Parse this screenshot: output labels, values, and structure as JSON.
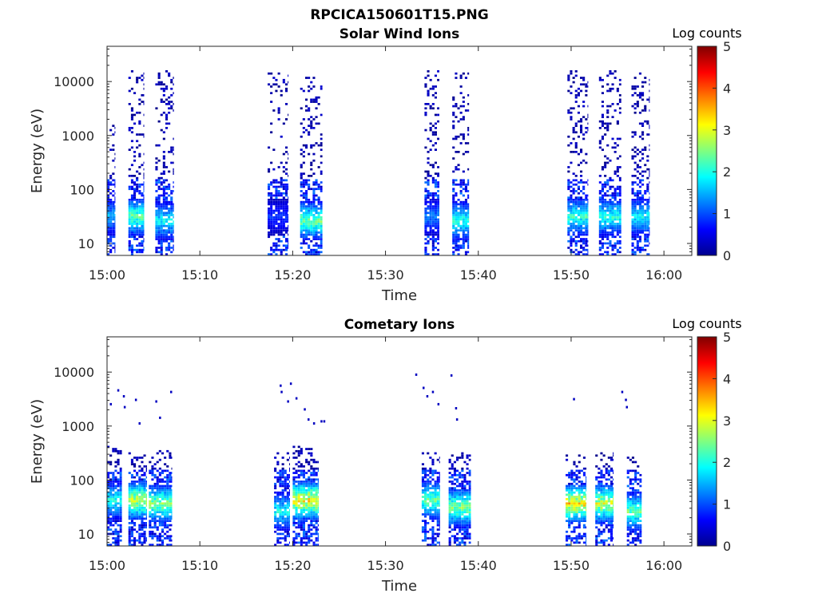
{
  "figure_title": "RPCICA150601T15.PNG",
  "chart_data": [
    {
      "type": "heatmap",
      "title": "Solar Wind Ions",
      "xlabel": "Time",
      "ylabel": "Energy (eV)",
      "yscale": "log",
      "xlim_minutes": [
        0,
        63
      ],
      "ylim": [
        6,
        45000
      ],
      "x_ticks": [
        {
          "value": 0,
          "label": "15:00"
        },
        {
          "value": 10,
          "label": "15:10"
        },
        {
          "value": 20,
          "label": "15:20"
        },
        {
          "value": 30,
          "label": "15:30"
        },
        {
          "value": 40,
          "label": "15:40"
        },
        {
          "value": 50,
          "label": "15:50"
        },
        {
          "value": 60,
          "label": "16:00"
        }
      ],
      "y_ticks": [
        {
          "value": 10,
          "label": "10"
        },
        {
          "value": 100,
          "label": "100"
        },
        {
          "value": 1000,
          "label": "1000"
        },
        {
          "value": 10000,
          "label": "10000"
        }
      ],
      "colorbar": {
        "title": "Log counts",
        "min": 0,
        "max": 5,
        "ticks": [
          "0",
          "1",
          "2",
          "3",
          "4",
          "5"
        ],
        "colormap": "jet"
      },
      "grid": false,
      "bursts": [
        {
          "t0": 0.0,
          "t1": 0.9,
          "peak_energy": 30,
          "peak_log": 1.8,
          "emax": 1500,
          "density": 0.35
        },
        {
          "t0": 2.3,
          "t1": 4.0,
          "peak_energy": 30,
          "peak_log": 2.7,
          "emax": 15000,
          "density": 0.4
        },
        {
          "t0": 5.2,
          "t1": 7.2,
          "peak_energy": 25,
          "peak_log": 2.2,
          "emax": 15000,
          "density": 0.45
        },
        {
          "t0": 17.3,
          "t1": 19.5,
          "peak_energy": 30,
          "peak_log": 1.0,
          "emax": 15000,
          "density": 0.3
        },
        {
          "t0": 20.8,
          "t1": 23.2,
          "peak_energy": 25,
          "peak_log": 2.8,
          "emax": 12000,
          "density": 0.45
        },
        {
          "t0": 34.2,
          "t1": 35.8,
          "peak_energy": 30,
          "peak_log": 1.5,
          "emax": 15000,
          "density": 0.45
        },
        {
          "t0": 37.2,
          "t1": 39.0,
          "peak_energy": 25,
          "peak_log": 2.4,
          "emax": 15000,
          "density": 0.45
        },
        {
          "t0": 49.6,
          "t1": 51.8,
          "peak_energy": 30,
          "peak_log": 2.5,
          "emax": 15000,
          "density": 0.45
        },
        {
          "t0": 53.0,
          "t1": 55.4,
          "peak_energy": 30,
          "peak_log": 2.4,
          "emax": 15000,
          "density": 0.45
        },
        {
          "t0": 56.5,
          "t1": 58.4,
          "peak_energy": 30,
          "peak_log": 2.2,
          "emax": 15000,
          "density": 0.45
        }
      ]
    },
    {
      "type": "heatmap",
      "title": "Cometary Ions",
      "xlabel": "Time",
      "ylabel": "Energy (eV)",
      "yscale": "log",
      "xlim_minutes": [
        0,
        63
      ],
      "ylim": [
        6,
        45000
      ],
      "x_ticks": [
        {
          "value": 0,
          "label": "15:00"
        },
        {
          "value": 10,
          "label": "15:10"
        },
        {
          "value": 20,
          "label": "15:20"
        },
        {
          "value": 30,
          "label": "15:30"
        },
        {
          "value": 40,
          "label": "15:40"
        },
        {
          "value": 50,
          "label": "15:50"
        },
        {
          "value": 60,
          "label": "16:00"
        }
      ],
      "y_ticks": [
        {
          "value": 10,
          "label": "10"
        },
        {
          "value": 100,
          "label": "100"
        },
        {
          "value": 1000,
          "label": "1000"
        },
        {
          "value": 10000,
          "label": "10000"
        }
      ],
      "colorbar": {
        "title": "Log counts",
        "min": 0,
        "max": 5,
        "ticks": [
          "0",
          "1",
          "2",
          "3",
          "4",
          "5"
        ],
        "colormap": "jet"
      },
      "grid": false,
      "bursts": [
        {
          "t0": 0.0,
          "t1": 1.6,
          "peak_energy": 40,
          "peak_log": 2.3,
          "emax": 400,
          "density": 0.55
        },
        {
          "t0": 2.3,
          "t1": 4.3,
          "peak_energy": 40,
          "peak_log": 3.4,
          "emax": 300,
          "density": 0.55
        },
        {
          "t0": 4.5,
          "t1": 7.0,
          "peak_energy": 35,
          "peak_log": 3.0,
          "emax": 350,
          "density": 0.6
        },
        {
          "t0": 18.0,
          "t1": 19.7,
          "peak_energy": 25,
          "peak_log": 2.3,
          "emax": 300,
          "density": 0.5
        },
        {
          "t0": 20.0,
          "t1": 22.8,
          "peak_energy": 40,
          "peak_log": 3.7,
          "emax": 400,
          "density": 0.55
        },
        {
          "t0": 33.9,
          "t1": 35.8,
          "peak_energy": 40,
          "peak_log": 2.8,
          "emax": 300,
          "density": 0.55
        },
        {
          "t0": 36.8,
          "t1": 39.2,
          "peak_energy": 30,
          "peak_log": 3.0,
          "emax": 300,
          "density": 0.55
        },
        {
          "t0": 49.4,
          "t1": 51.6,
          "peak_energy": 35,
          "peak_log": 3.8,
          "emax": 300,
          "density": 0.55
        },
        {
          "t0": 52.6,
          "t1": 54.5,
          "peak_energy": 35,
          "peak_log": 3.4,
          "emax": 300,
          "density": 0.55
        },
        {
          "t0": 56.0,
          "t1": 57.6,
          "peak_energy": 25,
          "peak_log": 2.8,
          "emax": 250,
          "density": 0.5
        }
      ],
      "sparse_high": [
        {
          "t": 0.3,
          "e": 2500
        },
        {
          "t": 1.1,
          "e": 4500
        },
        {
          "t": 1.7,
          "e": 3500
        },
        {
          "t": 1.8,
          "e": 2200
        },
        {
          "t": 3.0,
          "e": 3000
        },
        {
          "t": 3.4,
          "e": 1100
        },
        {
          "t": 5.2,
          "e": 2800
        },
        {
          "t": 5.6,
          "e": 1400
        },
        {
          "t": 6.8,
          "e": 4200
        },
        {
          "t": 18.6,
          "e": 5500
        },
        {
          "t": 18.7,
          "e": 4200
        },
        {
          "t": 19.4,
          "e": 2800
        },
        {
          "t": 19.7,
          "e": 6000
        },
        {
          "t": 20.3,
          "e": 3200
        },
        {
          "t": 21.2,
          "e": 2000
        },
        {
          "t": 21.6,
          "e": 1300
        },
        {
          "t": 22.2,
          "e": 1100
        },
        {
          "t": 23.0,
          "e": 1200
        },
        {
          "t": 23.3,
          "e": 1200
        },
        {
          "t": 33.2,
          "e": 8800
        },
        {
          "t": 34.0,
          "e": 5000
        },
        {
          "t": 34.4,
          "e": 3500
        },
        {
          "t": 35.0,
          "e": 4200
        },
        {
          "t": 35.6,
          "e": 2500
        },
        {
          "t": 37.0,
          "e": 8500
        },
        {
          "t": 37.5,
          "e": 2100
        },
        {
          "t": 37.6,
          "e": 1300
        },
        {
          "t": 50.2,
          "e": 3100
        },
        {
          "t": 55.4,
          "e": 4200
        },
        {
          "t": 55.8,
          "e": 3000
        },
        {
          "t": 55.9,
          "e": 2200
        }
      ]
    }
  ]
}
